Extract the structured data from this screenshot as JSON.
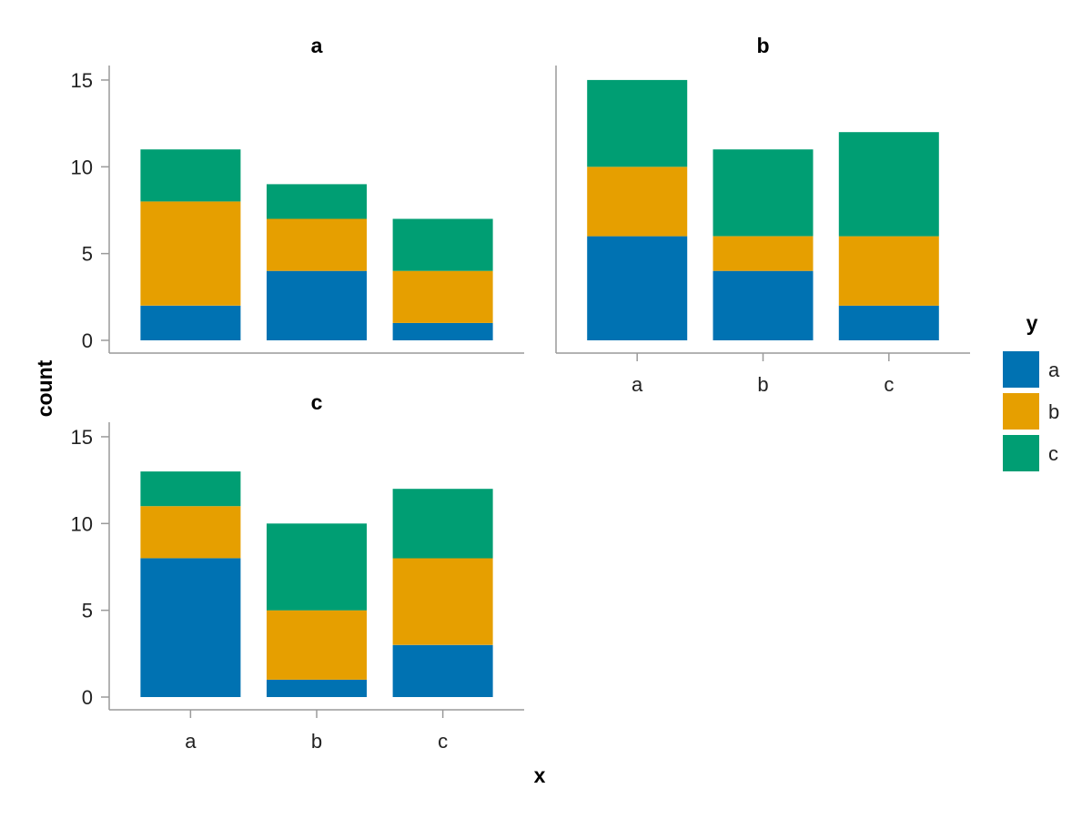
{
  "chart_data": {
    "type": "bar",
    "stacked": true,
    "xlabel": "x",
    "ylabel": "count",
    "ylim": [
      0,
      16
    ],
    "yticks": [
      0,
      5,
      10,
      15
    ],
    "grid": false,
    "legend": {
      "title": "y",
      "placement": "right",
      "entries": [
        "a",
        "b",
        "c"
      ]
    },
    "colors": {
      "a": "#0072b2",
      "b": "#e69f00",
      "c": "#009e73"
    },
    "facets": [
      {
        "title": "a",
        "categories": [
          "a",
          "b",
          "c"
        ],
        "series": [
          {
            "name": "a",
            "values": [
              2,
              4,
              1
            ]
          },
          {
            "name": "b",
            "values": [
              6,
              3,
              3
            ]
          },
          {
            "name": "c",
            "values": [
              3,
              2,
              3
            ]
          }
        ]
      },
      {
        "title": "b",
        "categories": [
          "a",
          "b",
          "c"
        ],
        "series": [
          {
            "name": "a",
            "values": [
              6,
              4,
              2
            ]
          },
          {
            "name": "b",
            "values": [
              4,
              2,
              4
            ]
          },
          {
            "name": "c",
            "values": [
              5,
              5,
              6
            ]
          }
        ]
      },
      {
        "title": "c",
        "categories": [
          "a",
          "b",
          "c"
        ],
        "series": [
          {
            "name": "a",
            "values": [
              8,
              1,
              3
            ]
          },
          {
            "name": "b",
            "values": [
              3,
              4,
              5
            ]
          },
          {
            "name": "c",
            "values": [
              2,
              5,
              4
            ]
          }
        ]
      }
    ]
  }
}
